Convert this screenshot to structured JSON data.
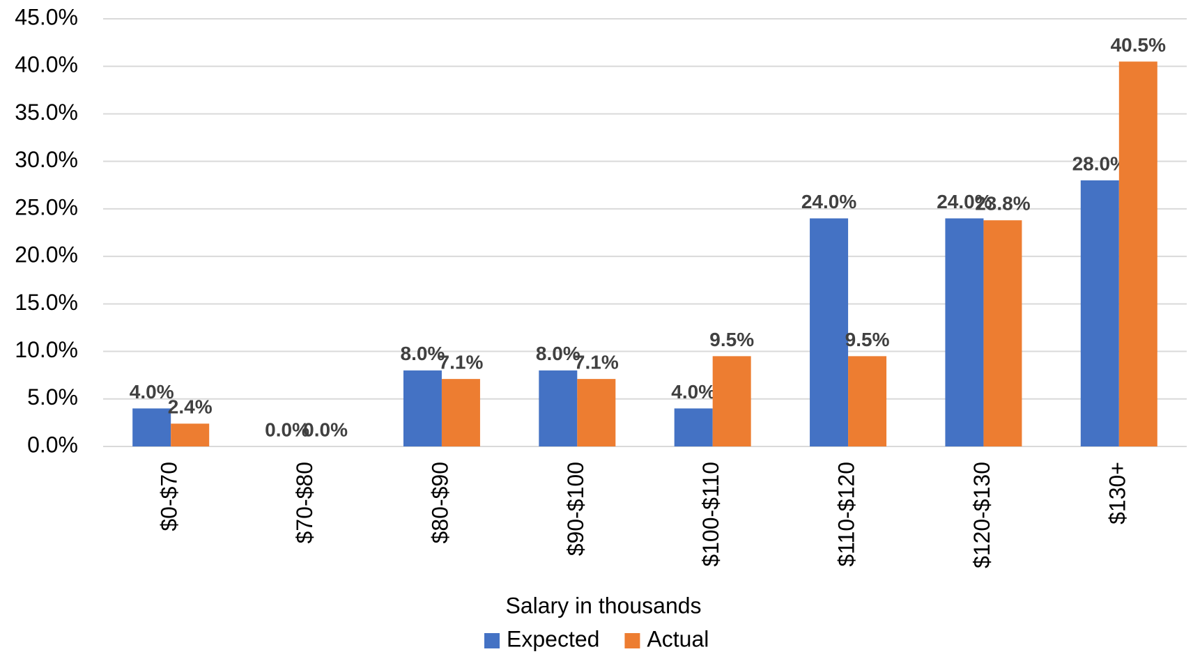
{
  "chart_data": {
    "type": "bar",
    "x_label": "Salary in thousands",
    "categories": [
      "$0-$70",
      "$70-$80",
      "$80-$90",
      "$90-$100",
      "$100-$110",
      "$110-$120",
      "$120-$130",
      "$130+"
    ],
    "series": [
      {
        "name": "Expected",
        "color": "#4472c4",
        "values": [
          4,
          0,
          8,
          8,
          4,
          24,
          24,
          28
        ],
        "value_labels": [
          "4.0%",
          "0.0%",
          "8.0%",
          "8.0%",
          "4.0%",
          "24.0%",
          "24.0%",
          "28.0%"
        ]
      },
      {
        "name": "Actual",
        "color": "#ed7d31",
        "values": [
          2.4,
          0,
          7.1,
          7.1,
          9.5,
          9.5,
          23.8,
          40.5
        ],
        "value_labels": [
          "2.4%",
          "0.0%",
          "7.1%",
          "7.1%",
          "9.5%",
          "9.5%",
          "23.8%",
          "40.5%"
        ]
      }
    ],
    "ylim": [
      0,
      45
    ],
    "yticks": [
      {
        "value": 0,
        "label": "0.0%"
      },
      {
        "value": 5,
        "label": "5.0%"
      },
      {
        "value": 10,
        "label": "10.0%"
      },
      {
        "value": 15,
        "label": "15.0%"
      },
      {
        "value": 20,
        "label": "20.0%"
      },
      {
        "value": 25,
        "label": "25.0%"
      },
      {
        "value": 30,
        "label": "30.0%"
      },
      {
        "value": 35,
        "label": "35.0%"
      },
      {
        "value": 40,
        "label": "40.0%"
      },
      {
        "value": 45,
        "label": "45.0%"
      }
    ],
    "grid": true,
    "legend": "bottom"
  }
}
